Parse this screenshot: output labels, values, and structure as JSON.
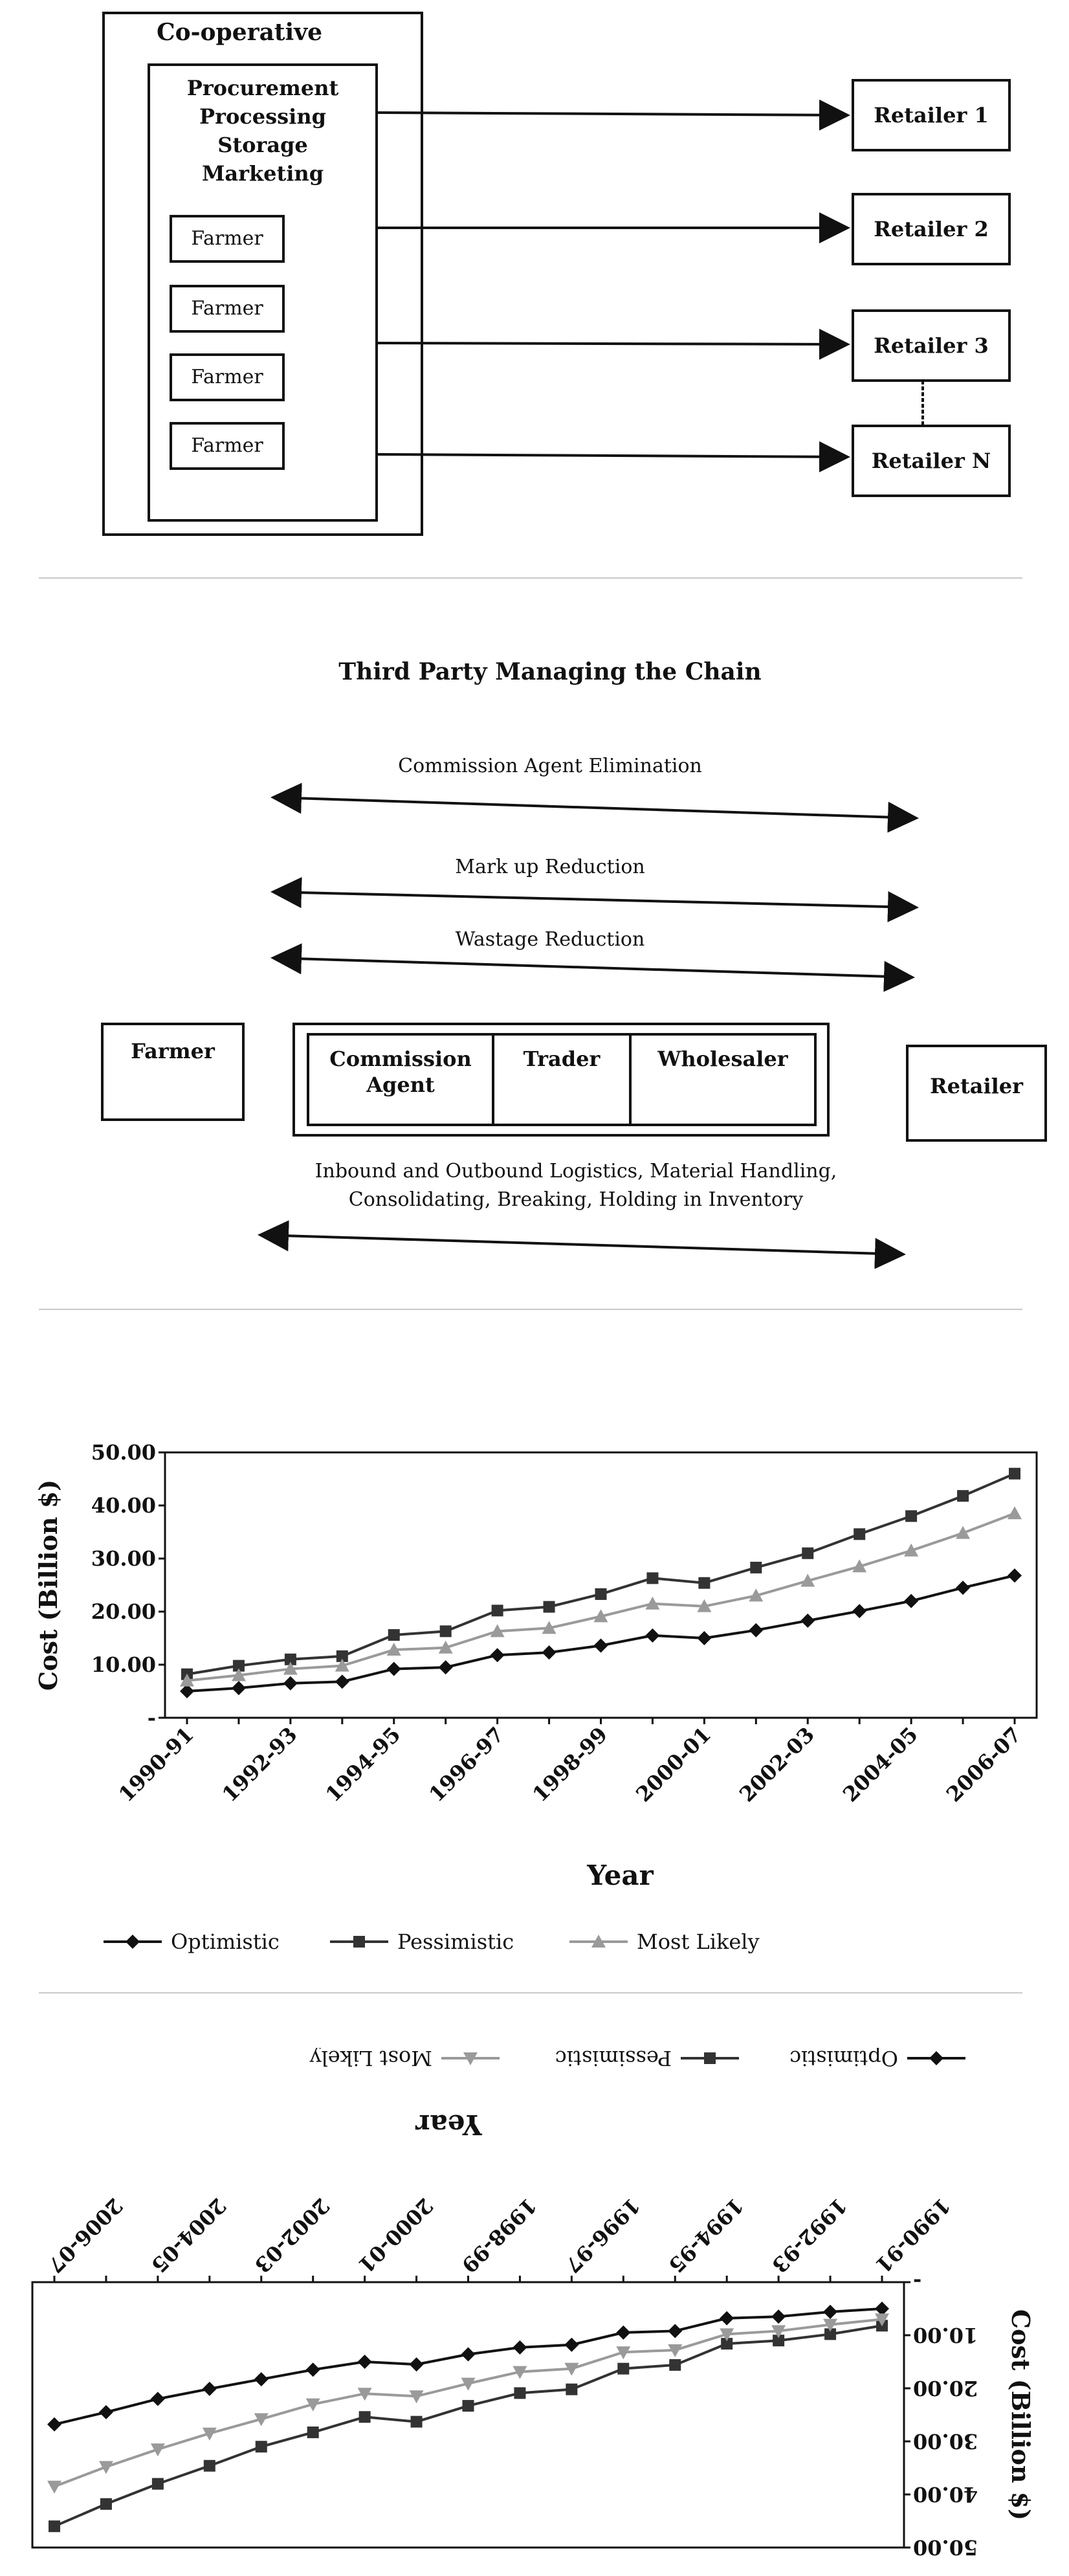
{
  "coop": {
    "title": "Co-operative",
    "functions": [
      "Procurement",
      "Processing",
      "Storage",
      "Marketing"
    ],
    "farmers": [
      "Farmer",
      "Farmer",
      "Farmer",
      "Farmer"
    ],
    "retailers": [
      "Retailer 1",
      "Retailer 2",
      "Retailer 3",
      "Retailer N"
    ]
  },
  "third_party": {
    "title": "Third Party Managing the Chain",
    "arrows": [
      "Commission Agent Elimination",
      "Mark up Reduction",
      "Wastage Reduction"
    ],
    "farmer": "Farmer",
    "retailer": "Retailer",
    "intermediaries": [
      "Commission Agent",
      "Trader",
      "Wholesaler"
    ],
    "logistics_line1": "Inbound and Outbound Logistics, Material Handling,",
    "logistics_line2": "Consolidating, Breaking, Holding in Inventory"
  },
  "chart_data": [
    {
      "type": "line",
      "xlabel": "Year",
      "ylabel": "Cost (Billion $)",
      "ylim": [
        0,
        50
      ],
      "yticks": [
        "-",
        "10.00",
        "20.00",
        "30.00",
        "40.00",
        "50.00"
      ],
      "x": [
        "1990-91",
        "1991-92",
        "1992-93",
        "1993-94",
        "1994-95",
        "1995-96",
        "1996-97",
        "1997-98",
        "1998-99",
        "1999-00",
        "2000-01",
        "2001-02",
        "2002-03",
        "2003-04",
        "2004-05",
        "2005-06",
        "2006-07"
      ],
      "xtick_labels": [
        "1990-91",
        "1992-93",
        "1994-95",
        "1996-97",
        "1998-99",
        "2000-01",
        "2002-03",
        "2004-05",
        "2006-07"
      ],
      "legend": "bottom",
      "grid": false,
      "series": [
        {
          "name": "Optimistic",
          "color": "#111111",
          "marker": "diamond",
          "values": [
            5.0,
            5.6,
            6.5,
            6.8,
            9.2,
            9.5,
            11.8,
            12.3,
            13.6,
            15.5,
            15.0,
            16.5,
            18.3,
            20.1,
            22.0,
            24.5,
            26.8
          ]
        },
        {
          "name": "Pessimistic",
          "color": "#333333",
          "marker": "square",
          "values": [
            8.2,
            9.8,
            11.0,
            11.6,
            15.6,
            16.3,
            20.2,
            20.9,
            23.3,
            26.3,
            25.4,
            28.3,
            31.0,
            34.6,
            38.0,
            41.8,
            46.0
          ]
        },
        {
          "name": "Most Likely",
          "color": "#9a9a9a",
          "marker": "triangle",
          "values": [
            7.0,
            8.0,
            9.2,
            9.8,
            12.8,
            13.2,
            16.3,
            16.9,
            19.1,
            21.5,
            21.0,
            23.0,
            25.8,
            28.5,
            31.5,
            34.8,
            38.5
          ]
        }
      ]
    },
    {
      "type": "line",
      "rotated": "180deg",
      "xlabel": "Year",
      "ylabel": "Cost (Billion $)",
      "ylim": [
        0,
        50
      ],
      "yticks": [
        "-",
        "10.00",
        "20.00",
        "30.00",
        "40.00",
        "50.00"
      ],
      "x": [
        "1990-91",
        "1991-92",
        "1992-93",
        "1993-94",
        "1994-95",
        "1995-96",
        "1996-97",
        "1997-98",
        "1998-99",
        "1999-00",
        "2000-01",
        "2001-02",
        "2002-03",
        "2003-04",
        "2004-05",
        "2005-06",
        "2006-07"
      ],
      "xtick_labels": [
        "1990-91",
        "1992-93",
        "1994-95",
        "1996-97",
        "1998-99",
        "2000-01",
        "2002-03",
        "2004-05",
        "2006-07"
      ],
      "legend": "bottom",
      "grid": false,
      "series": [
        {
          "name": "Optimistic",
          "color": "#111111",
          "marker": "diamond",
          "values": [
            5.0,
            5.6,
            6.5,
            6.8,
            9.2,
            9.5,
            11.8,
            12.3,
            13.6,
            15.5,
            15.0,
            16.5,
            18.3,
            20.1,
            22.0,
            24.5,
            26.8
          ]
        },
        {
          "name": "Pessimistic",
          "color": "#333333",
          "marker": "square",
          "values": [
            8.2,
            9.8,
            11.0,
            11.6,
            15.6,
            16.3,
            20.2,
            20.9,
            23.3,
            26.3,
            25.4,
            28.3,
            31.0,
            34.6,
            38.0,
            41.8,
            46.0
          ]
        },
        {
          "name": "Most Likely",
          "color": "#9a9a9a",
          "marker": "triangle",
          "values": [
            7.0,
            8.0,
            9.2,
            9.8,
            12.8,
            13.2,
            16.3,
            16.9,
            19.1,
            21.5,
            21.0,
            23.0,
            25.8,
            28.5,
            31.5,
            34.8,
            38.5
          ]
        }
      ]
    }
  ]
}
